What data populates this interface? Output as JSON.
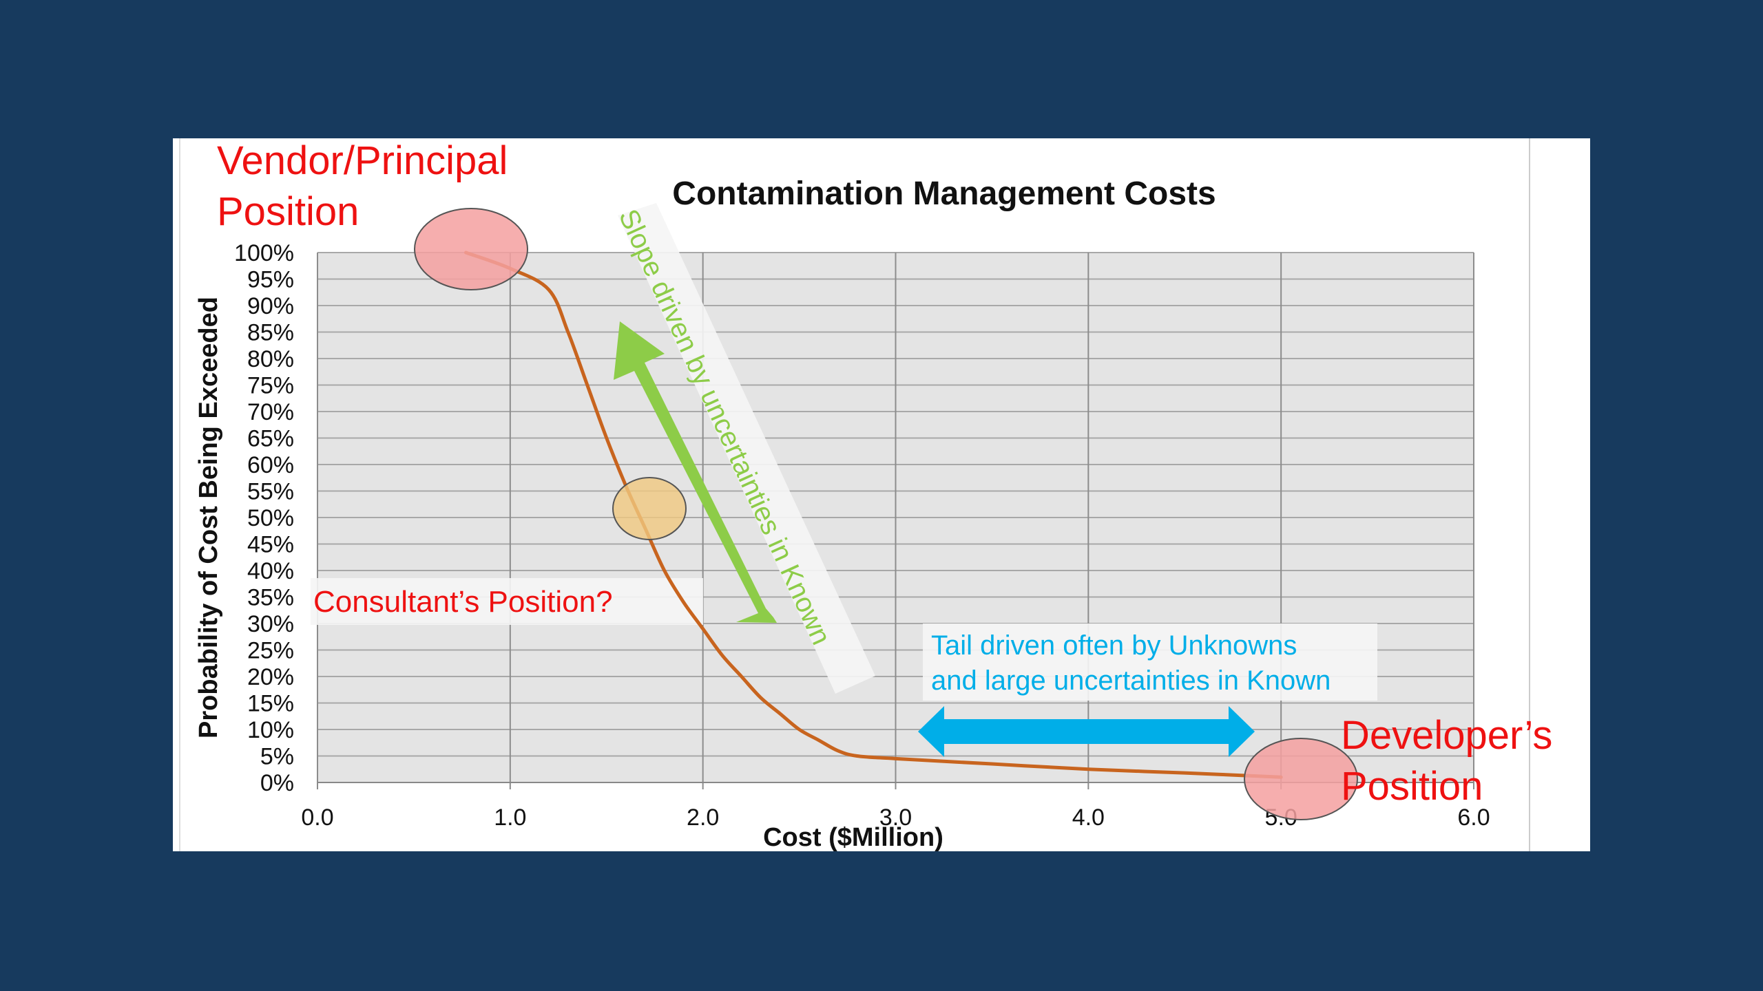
{
  "chart_data": {
    "type": "line",
    "title": "Contamination Management Costs",
    "xlabel": "Cost ($Million)",
    "ylabel": "Probability of Cost Being Exceeded",
    "xlim": [
      0,
      6
    ],
    "ylim": [
      0,
      100
    ],
    "x_ticks": [
      "0.0",
      "1.0",
      "2.0",
      "3.0",
      "4.0",
      "5.0",
      "6.0"
    ],
    "y_ticks": [
      "0%",
      "5%",
      "10%",
      "15%",
      "20%",
      "25%",
      "30%",
      "35%",
      "40%",
      "45%",
      "50%",
      "55%",
      "60%",
      "65%",
      "70%",
      "75%",
      "80%",
      "85%",
      "90%",
      "95%",
      "100%"
    ],
    "grid": true,
    "legend": "none",
    "series": [
      {
        "color": "#c8641e",
        "x": [
          0.77,
          1.0,
          1.2,
          1.3,
          1.4,
          1.5,
          1.6,
          1.7,
          1.8,
          1.9,
          2.0,
          2.1,
          2.2,
          2.3,
          2.4,
          2.5,
          2.6,
          2.7,
          2.8,
          3.0,
          3.5,
          4.0,
          4.5,
          5.0
        ],
        "y": [
          100,
          97,
          93,
          85,
          75,
          65,
          56,
          48,
          40,
          34,
          29,
          24,
          20,
          16,
          13,
          10,
          8,
          6,
          5,
          4.5,
          3.5,
          2.5,
          1.8,
          1
        ]
      }
    ],
    "annotations": {
      "vendor": {
        "line1": "Vendor/Principal",
        "line2": "Position"
      },
      "developer": {
        "line1": "Developer’s",
        "line2": "Position"
      },
      "consultant": "Consultant’s Position?",
      "slope": "Slope driven by uncertainties in Known",
      "tail": {
        "line1": "Tail driven often by Unknowns",
        "line2": "and large uncertainties in Known"
      }
    },
    "colors": {
      "background": "#173a5e",
      "plot_area": "#e4e4e4",
      "grid": "#a8a8a8",
      "curve": "#c8641e",
      "red_text": "#ee1111",
      "red_circle": "#f4a0a0",
      "orange_circle": "#f0c880",
      "green": "#8dcc48",
      "cyan": "#00aee8"
    }
  }
}
